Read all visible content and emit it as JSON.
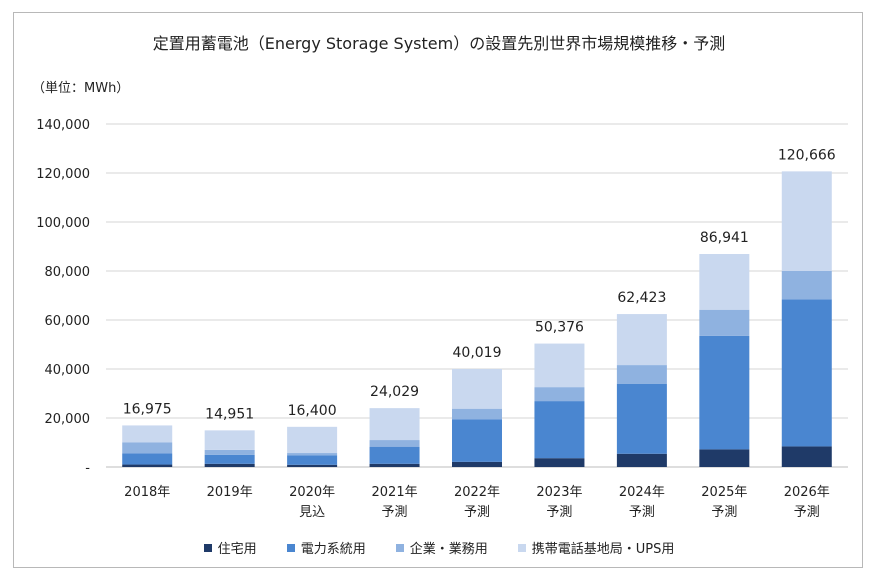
{
  "chart_data": {
    "type": "bar",
    "stacked": true,
    "title": "定置用蓄電池（Energy Storage System）の設置先別世界市場規模推移・予測",
    "unit_label": "（単位：MWh）",
    "categories": [
      [
        "2018年"
      ],
      [
        "2019年"
      ],
      [
        "2020年",
        "見込"
      ],
      [
        "2021年",
        "予測"
      ],
      [
        "2022年",
        "予測"
      ],
      [
        "2023年",
        "予測"
      ],
      [
        "2024年",
        "予測"
      ],
      [
        "2025年",
        "予測"
      ],
      [
        "2026年",
        "予測"
      ]
    ],
    "series": [
      {
        "name": "住宅用",
        "color": "#1f3a68",
        "values": [
          1000,
          1300,
          900,
          1300,
          2100,
          3600,
          5400,
          7200,
          8400
        ]
      },
      {
        "name": "電力系統用",
        "color": "#4a86d0",
        "values": [
          4500,
          3700,
          3900,
          7000,
          17400,
          23300,
          28600,
          46300,
          60000
        ]
      },
      {
        "name": "企業・業務用",
        "color": "#8fb2e0",
        "values": [
          4500,
          2000,
          900,
          2700,
          4300,
          5700,
          7600,
          10700,
          11600
        ]
      },
      {
        "name": "携帯電話基地局・UPS用",
        "color": "#c9d8ef",
        "values": [
          6975,
          7951,
          10700,
          13029,
          16219,
          17776,
          20823,
          22741,
          40666
        ]
      }
    ],
    "totals": [
      "16,975",
      "14,951",
      "16,400",
      "24,029",
      "40,019",
      "50,376",
      "62,423",
      "86,941",
      "120,666"
    ],
    "ylim": [
      0,
      140000
    ],
    "yticks": [
      "-",
      "20,000",
      "40,000",
      "60,000",
      "80,000",
      "100,000",
      "120,000",
      "140,000"
    ],
    "grid": true,
    "legend_position": "bottom"
  }
}
